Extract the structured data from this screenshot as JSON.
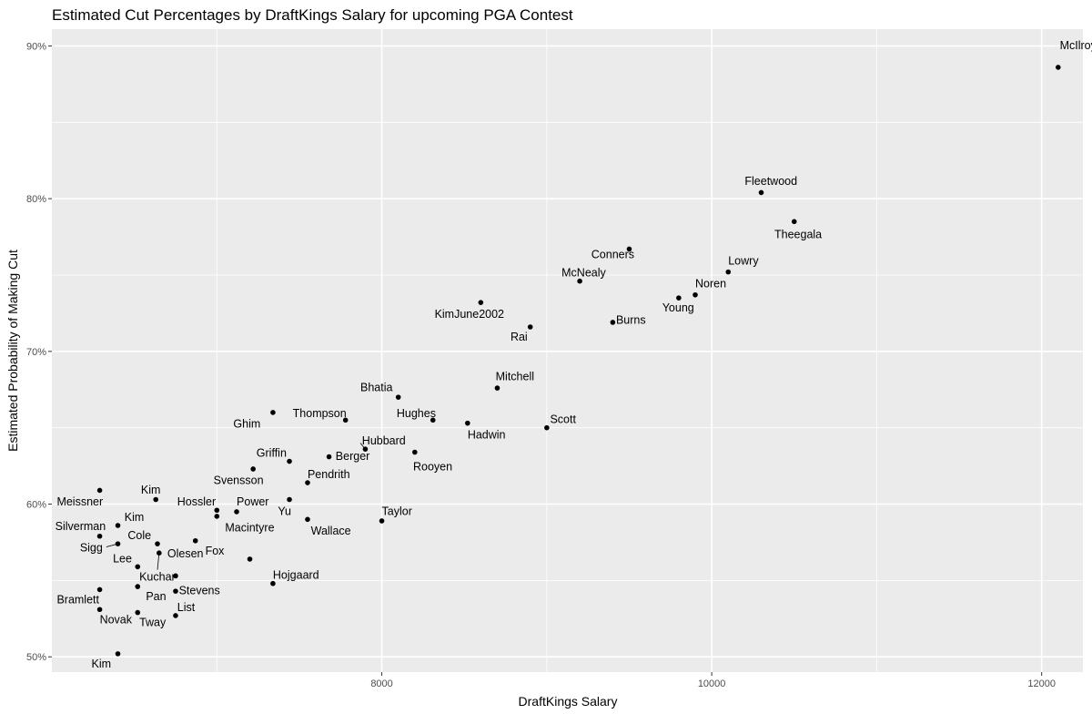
{
  "chart_data": {
    "type": "scatter",
    "title": "Estimated Cut Percentages by DraftKings Salary for upcoming PGA Contest",
    "xlabel": "DraftKings Salary",
    "ylabel": "Estimated Probability of Making Cut",
    "xlim": [
      6000,
      12250
    ],
    "ylim": [
      0.49,
      0.911
    ],
    "x_ticks": [
      8000,
      10000,
      12000
    ],
    "x_tick_labels": [
      "8000",
      "10000",
      "12000"
    ],
    "y_ticks": [
      0.5,
      0.6,
      0.7,
      0.8,
      0.9
    ],
    "y_tick_labels": [
      "50%",
      "60%",
      "70%",
      "80%",
      "90%"
    ],
    "grid": true,
    "panel_background": "#ebebeb",
    "grid_color": "#ffffff",
    "point_color": "#000000",
    "points": [
      {
        "label": "McIlroy",
        "x": 12100,
        "y": 0.886,
        "lx": 12110,
        "ly": 0.898,
        "anchor": "start"
      },
      {
        "label": "Fleetwood",
        "x": 10300,
        "y": 0.804,
        "lx": 10200,
        "ly": 0.809,
        "anchor": "start"
      },
      {
        "label": "Theegala",
        "x": 10500,
        "y": 0.785,
        "lx": 10380,
        "ly": 0.774,
        "anchor": "start"
      },
      {
        "label": "Conners",
        "x": 9500,
        "y": 0.767,
        "lx": 9270,
        "ly": 0.761,
        "anchor": "start"
      },
      {
        "label": "Lowry",
        "x": 10100,
        "y": 0.752,
        "lx": 10100,
        "ly": 0.757,
        "anchor": "start"
      },
      {
        "label": "McNealy",
        "x": 9200,
        "y": 0.746,
        "lx": 9090,
        "ly": 0.749,
        "anchor": "start"
      },
      {
        "label": "Noren",
        "x": 9900,
        "y": 0.737,
        "lx": 9900,
        "ly": 0.742,
        "anchor": "start"
      },
      {
        "label": "Young",
        "x": 9800,
        "y": 0.735,
        "lx": 9700,
        "ly": 0.726,
        "anchor": "start"
      },
      {
        "label": "KimJune2002",
        "x": 8600,
        "y": 0.732,
        "lx": 8320,
        "ly": 0.722,
        "anchor": "start"
      },
      {
        "label": "Burns",
        "x": 9400,
        "y": 0.719,
        "lx": 9420,
        "ly": 0.718,
        "anchor": "start"
      },
      {
        "label": "Rai",
        "x": 8900,
        "y": 0.716,
        "lx": 8780,
        "ly": 0.707,
        "anchor": "start"
      },
      {
        "label": "Mitchell",
        "x": 8700,
        "y": 0.676,
        "lx": 8690,
        "ly": 0.681,
        "anchor": "start"
      },
      {
        "label": "Bhatia",
        "x": 8100,
        "y": 0.67,
        "lx": 7870,
        "ly": 0.674,
        "anchor": "start"
      },
      {
        "label": "Ghim",
        "x": 7340,
        "y": 0.66,
        "lx": 7100,
        "ly": 0.65,
        "anchor": "start"
      },
      {
        "label": "Thompson",
        "x": 7780,
        "y": 0.655,
        "lx": 7460,
        "ly": 0.657,
        "anchor": "start"
      },
      {
        "label": "Hughes",
        "x": 8310,
        "y": 0.655,
        "lx": 8090,
        "ly": 0.657,
        "anchor": "start"
      },
      {
        "label": "Hadwin",
        "x": 8520,
        "y": 0.653,
        "lx": 8520,
        "ly": 0.643,
        "anchor": "start"
      },
      {
        "label": "Scott",
        "x": 9000,
        "y": 0.65,
        "lx": 9020,
        "ly": 0.653,
        "anchor": "start"
      },
      {
        "label": "Hubbard",
        "x": 7900,
        "y": 0.636,
        "lx": 7880,
        "ly": 0.639,
        "anchor": "start"
      },
      {
        "label": "Rooyen",
        "x": 8200,
        "y": 0.634,
        "lx": 8190,
        "ly": 0.622,
        "anchor": "start"
      },
      {
        "label": "Berger",
        "x": 7680,
        "y": 0.631,
        "lx": 7720,
        "ly": 0.629,
        "anchor": "start"
      },
      {
        "label": "Griffin",
        "x": 7440,
        "y": 0.628,
        "lx": 7240,
        "ly": 0.631,
        "anchor": "start"
      },
      {
        "label": "Svensson",
        "x": 7220,
        "y": 0.623,
        "lx": 6980,
        "ly": 0.613,
        "anchor": "start"
      },
      {
        "label": "Pendrith",
        "x": 7550,
        "y": 0.614,
        "lx": 7550,
        "ly": 0.617,
        "anchor": "start"
      },
      {
        "label": "Meissner",
        "x": 6290,
        "y": 0.609,
        "lx": 6030,
        "ly": 0.599,
        "anchor": "start"
      },
      {
        "label": "Kim",
        "x": 6630,
        "y": 0.603,
        "lx": 6540,
        "ly": 0.607,
        "anchor": "start"
      },
      {
        "label": "Yu",
        "x": 7440,
        "y": 0.603,
        "lx": 7370,
        "ly": 0.593,
        "anchor": "start"
      },
      {
        "label": "Hossler",
        "x": 7000,
        "y": 0.596,
        "lx": 6760,
        "ly": 0.599,
        "anchor": "start"
      },
      {
        "label": "Power",
        "x": 7120,
        "y": 0.595,
        "lx": 7120,
        "ly": 0.599,
        "anchor": "start"
      },
      {
        "label": "Macintyre",
        "x": 7000,
        "y": 0.592,
        "lx": 7050,
        "ly": 0.582,
        "anchor": "start"
      },
      {
        "label": "Wallace",
        "x": 7550,
        "y": 0.59,
        "lx": 7570,
        "ly": 0.58,
        "anchor": "start"
      },
      {
        "label": "Taylor",
        "x": 8000,
        "y": 0.589,
        "lx": 8000,
        "ly": 0.593,
        "anchor": "start"
      },
      {
        "label": "Kim",
        "x": 6400,
        "y": 0.586,
        "lx": 6440,
        "ly": 0.589,
        "anchor": "start"
      },
      {
        "label": "Silverman",
        "x": 6290,
        "y": 0.579,
        "lx": 6020,
        "ly": 0.583,
        "anchor": "start"
      },
      {
        "label": "Cole",
        "x": 6640,
        "y": 0.574,
        "lx": 6460,
        "ly": 0.577,
        "anchor": "start"
      },
      {
        "label": "Sigg",
        "x": 6400,
        "y": 0.574,
        "lx": 6170,
        "ly": 0.569,
        "anchor": "start"
      },
      {
        "label": "Olesen",
        "x": 6650,
        "y": 0.568,
        "lx": 6700,
        "ly": 0.565,
        "anchor": "start"
      },
      {
        "label": "Lee",
        "x": 6520,
        "y": 0.559,
        "lx": 6370,
        "ly": 0.562,
        "anchor": "start"
      },
      {
        "label": "Fox",
        "x": 7200,
        "y": 0.564,
        "lx": 6930,
        "ly": 0.567,
        "anchor": "start"
      },
      {
        "label": "Macintyre2",
        "x": 6870,
        "y": 0.576,
        "hidden": true
      },
      {
        "label": "Kuchar",
        "x": 6750,
        "y": 0.553,
        "lx": 6530,
        "ly": 0.55,
        "anchor": "start"
      },
      {
        "label": "Hojgaard",
        "x": 7340,
        "y": 0.548,
        "lx": 7340,
        "ly": 0.551,
        "anchor": "start"
      },
      {
        "label": "Pan",
        "x": 6520,
        "y": 0.546,
        "lx": 6570,
        "ly": 0.537,
        "anchor": "start"
      },
      {
        "label": "Stevens",
        "x": 6750,
        "y": 0.543,
        "lx": 6770,
        "ly": 0.541,
        "anchor": "start"
      },
      {
        "label": "Bramlett",
        "x": 6290,
        "y": 0.544,
        "lx": 6030,
        "ly": 0.535,
        "anchor": "start"
      },
      {
        "label": "Novak",
        "x": 6290,
        "y": 0.531,
        "lx": 6290,
        "ly": 0.522,
        "anchor": "start"
      },
      {
        "label": "List",
        "x": 6750,
        "y": 0.527,
        "lx": 6760,
        "ly": 0.53,
        "anchor": "start"
      },
      {
        "label": "Tway",
        "x": 6520,
        "y": 0.529,
        "lx": 6530,
        "ly": 0.52,
        "anchor": "start"
      },
      {
        "label": "Kim",
        "x": 6400,
        "y": 0.502,
        "lx": 6240,
        "ly": 0.493,
        "anchor": "start"
      }
    ]
  }
}
